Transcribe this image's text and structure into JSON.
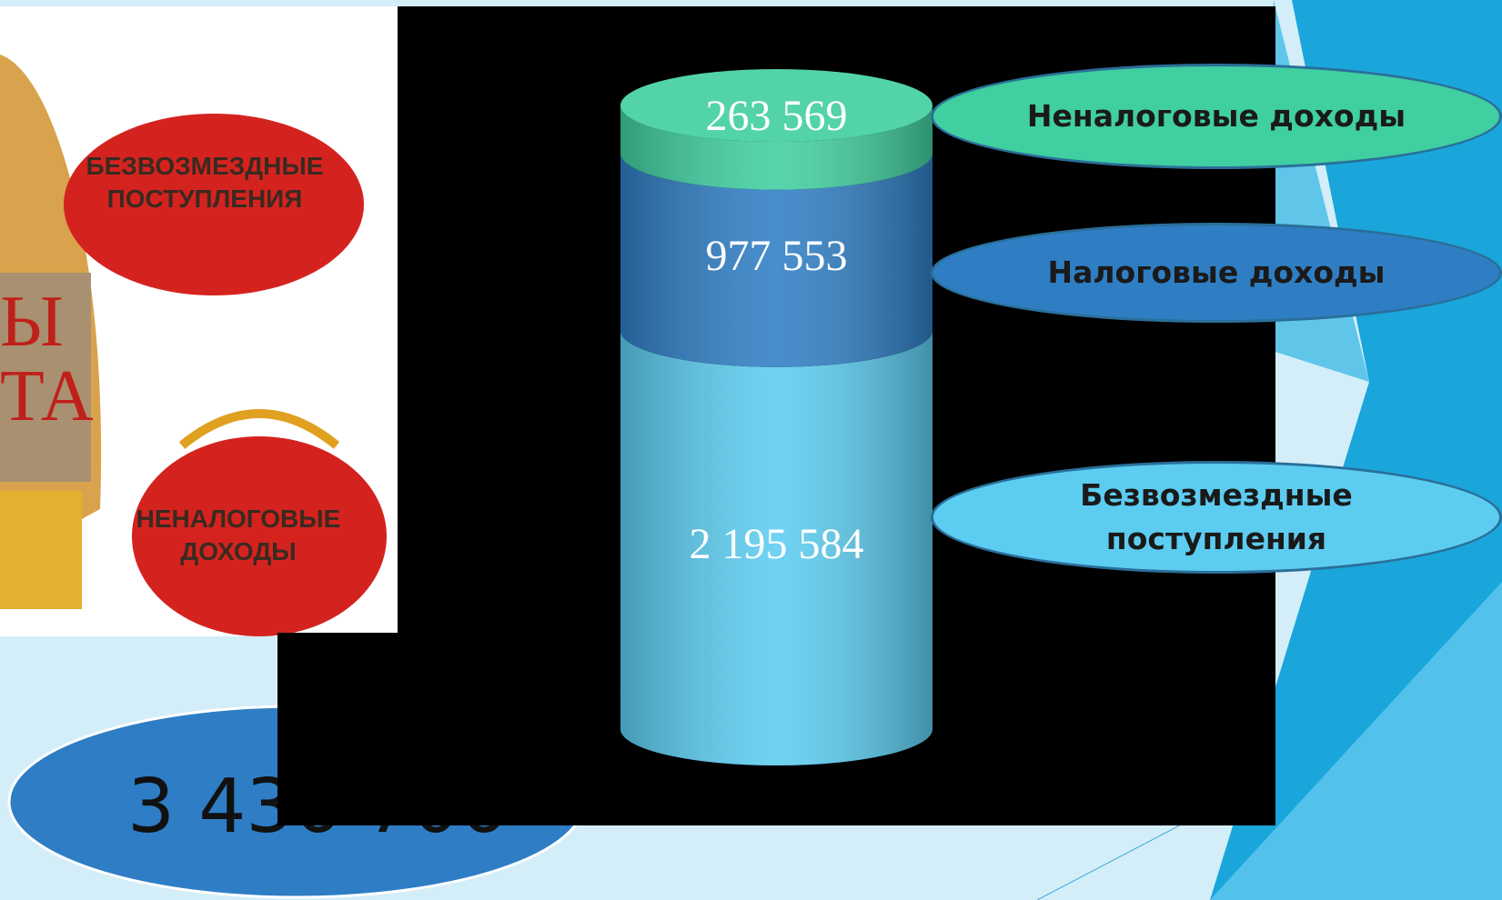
{
  "chart_data": {
    "type": "bar",
    "stacked": true,
    "series": [
      {
        "name": "Безвозмездные поступления",
        "color": "#5ccdf0",
        "values": [
          2195584
        ],
        "value_labels": [
          "2 195 584"
        ]
      },
      {
        "name": "Налоговые доходы",
        "color": "#2f7ec4",
        "values": [
          977553
        ],
        "value_labels": [
          "977 553"
        ]
      },
      {
        "name": "Неналоговые доходы",
        "color": "#40cfa0",
        "values": [
          263569
        ],
        "value_labels": [
          "263 569"
        ]
      }
    ],
    "total": "3 436 706"
  },
  "picture": {
    "labels": [
      "БЕЗВОЗМЕЗДНЫЕ",
      "ПОСТУПЛЕНИЯ",
      "НЕНАЛОГОВЫЕ",
      "ДОХОДЫ",
      "Ы",
      "ТА"
    ]
  }
}
